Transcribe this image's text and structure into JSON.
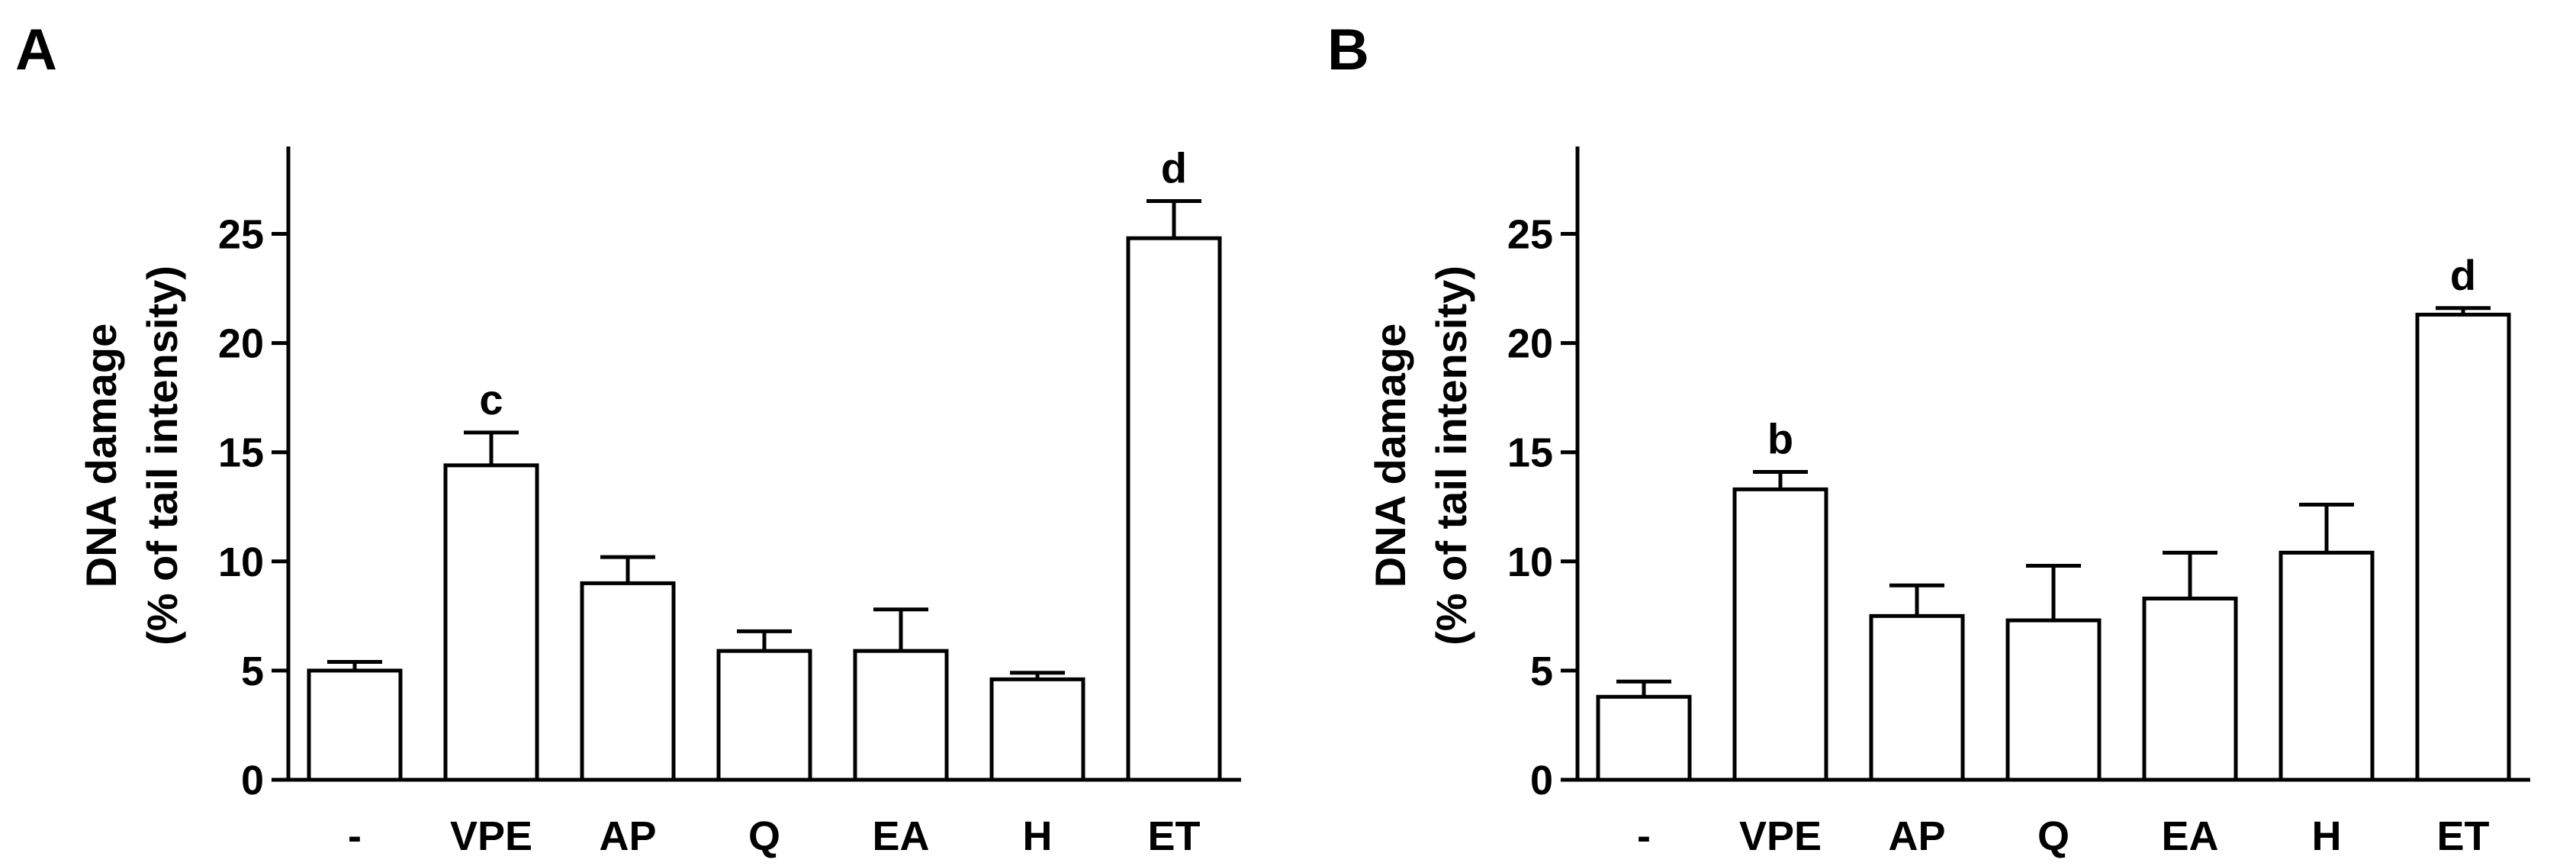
{
  "chart_data": [
    {
      "panel": "A",
      "type": "bar",
      "categories": [
        "-",
        "VPE",
        "AP",
        "Q",
        "EA",
        "H",
        "ET"
      ],
      "values": [
        5.0,
        14.4,
        9.0,
        5.9,
        5.9,
        4.6,
        24.8
      ],
      "errors": [
        0.4,
        1.5,
        1.2,
        0.9,
        1.9,
        0.3,
        1.7
      ],
      "annotations": [
        "",
        "c",
        "",
        "",
        "",
        "",
        "d"
      ],
      "ylabel_line1": "DNA damage",
      "ylabel_line2": "(% of tail intensity)",
      "yticks": [
        0,
        5,
        10,
        15,
        20,
        25
      ],
      "ylim": [
        0,
        29
      ],
      "grid": false,
      "bar_fill": "#ffffff",
      "bar_stroke": "#000000"
    },
    {
      "panel": "B",
      "type": "bar",
      "categories": [
        "-",
        "VPE",
        "AP",
        "Q",
        "EA",
        "H",
        "ET"
      ],
      "values": [
        3.8,
        13.3,
        7.5,
        7.3,
        8.3,
        10.4,
        21.3
      ],
      "errors": [
        0.7,
        0.8,
        1.4,
        2.5,
        2.1,
        2.2,
        0.3
      ],
      "annotations": [
        "",
        "b",
        "",
        "",
        "",
        "",
        "d"
      ],
      "ylabel_line1": "DNA damage",
      "ylabel_line2": "(% of tail intensity)",
      "yticks": [
        0,
        5,
        10,
        15,
        20,
        25
      ],
      "ylim": [
        0,
        29
      ],
      "grid": false,
      "bar_fill": "#ffffff",
      "bar_stroke": "#000000"
    }
  ]
}
